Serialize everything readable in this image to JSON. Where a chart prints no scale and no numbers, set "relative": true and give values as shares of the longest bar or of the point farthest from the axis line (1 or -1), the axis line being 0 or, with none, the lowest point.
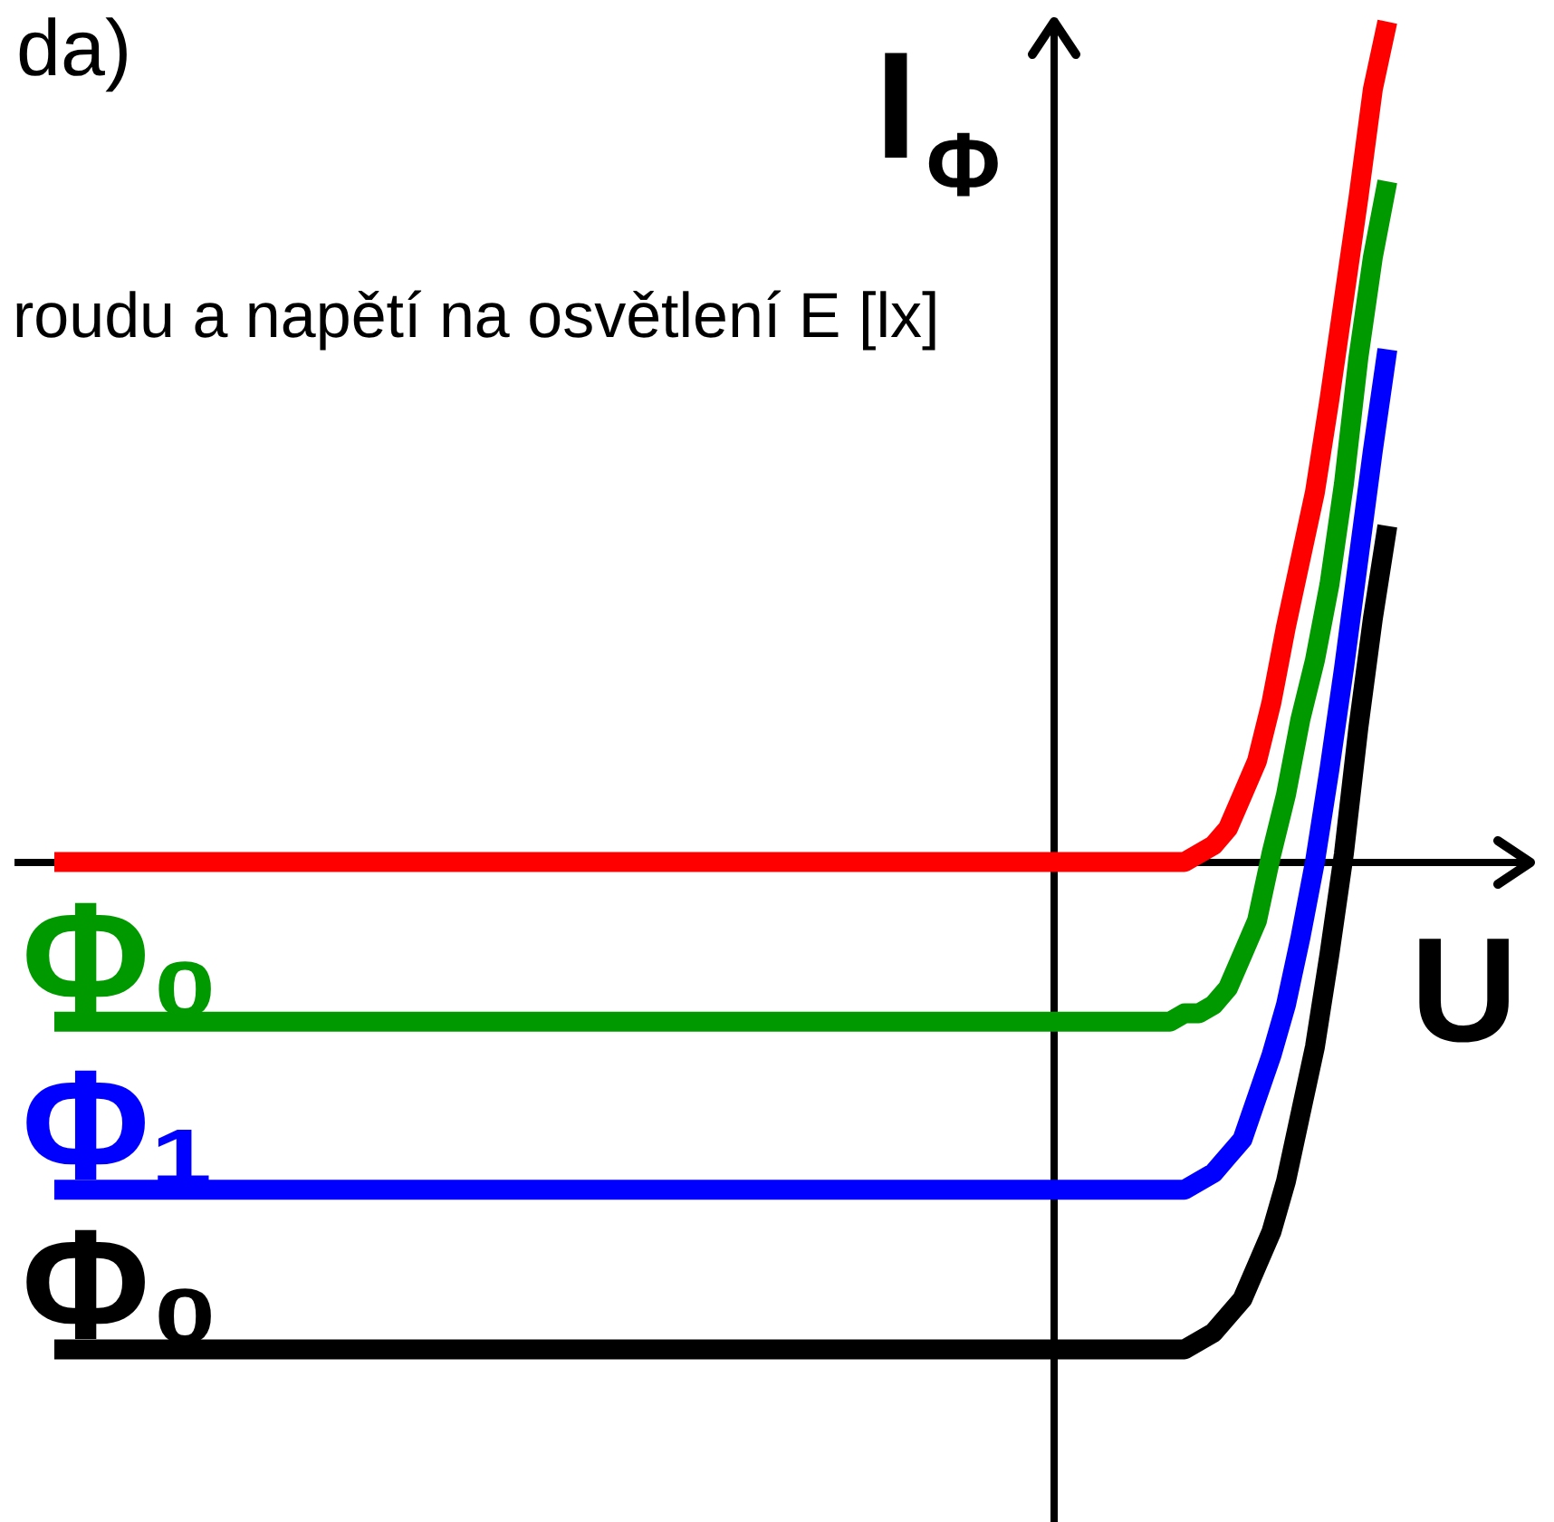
{
  "chart_data": {
    "type": "line",
    "title": "da)",
    "subtitle": "roudu a napětí na osvětlení E [lx]",
    "xlabel": "U",
    "ylabel": "I$_{Φ}$",
    "relative": true,
    "line_style": "solid",
    "categories": [
      null,
      null,
      null,
      null,
      null,
      null,
      null,
      null,
      null,
      null,
      null,
      null,
      null,
      null,
      null,
      null,
      null,
      null,
      null,
      null,
      null,
      null,
      null,
      null,
      null,
      null,
      null,
      null,
      null,
      null,
      null,
      null,
      null,
      null,
      null,
      null,
      null,
      null,
      null,
      null,
      null,
      null,
      null,
      null,
      null,
      null,
      null,
      null,
      null,
      null,
      null,
      null,
      null,
      null,
      null,
      null,
      null,
      null,
      null,
      null,
      null,
      null,
      null,
      null,
      null,
      null,
      null,
      null,
      null,
      null,
      null,
      null,
      null,
      null,
      null,
      null,
      null,
      null,
      null,
      null,
      null,
      null,
      null,
      null,
      null,
      null,
      null,
      null,
      null,
      null,
      null,
      null,
      null,
      null,
      null,
      null,
      null,
      null,
      null,
      null,
      null,
      null,
      null
    ],
    "series": [
      {
        "color": "#ff0000",
        "values": [
          0,
          0,
          0,
          0,
          0,
          0,
          0,
          0,
          0,
          0,
          0,
          0,
          0,
          0,
          0,
          0,
          0,
          0,
          0,
          0,
          0,
          0,
          0,
          0,
          0,
          0,
          0,
          0,
          0,
          0,
          0,
          0,
          0,
          0,
          0,
          0,
          0,
          0,
          0,
          0,
          0,
          0,
          0,
          0,
          0,
          0,
          0,
          0,
          0,
          0,
          0,
          0,
          0,
          0,
          0,
          0,
          0,
          0,
          0,
          0,
          0,
          0,
          0,
          0,
          0,
          0,
          0,
          0,
          0,
          0,
          0,
          0,
          0,
          0,
          0,
          0,
          0,
          0,
          0,
          0.01,
          0.02,
          0.04,
          0.08,
          0.12,
          0.19,
          0.28,
          0.36,
          0.44,
          0.55,
          0.67,
          0.79,
          0.92,
          1.0,
          null,
          null,
          null,
          null,
          null,
          null,
          null,
          null,
          null,
          null
        ]
      },
      {
        "name": "Φ₀",
        "color": "#009900",
        "values": [
          -0.19,
          -0.19,
          -0.19,
          -0.19,
          -0.19,
          -0.19,
          -0.19,
          -0.19,
          -0.19,
          -0.19,
          -0.19,
          -0.19,
          -0.19,
          -0.19,
          -0.19,
          -0.19,
          -0.19,
          -0.19,
          -0.19,
          -0.19,
          -0.19,
          -0.19,
          -0.19,
          -0.19,
          -0.19,
          -0.19,
          -0.19,
          -0.19,
          -0.19,
          -0.19,
          -0.19,
          -0.19,
          -0.19,
          -0.19,
          -0.19,
          -0.19,
          -0.19,
          -0.19,
          -0.19,
          -0.19,
          -0.19,
          -0.19,
          -0.19,
          -0.19,
          -0.19,
          -0.19,
          -0.19,
          -0.19,
          -0.19,
          -0.19,
          -0.19,
          -0.19,
          -0.19,
          -0.19,
          -0.19,
          -0.19,
          -0.19,
          -0.19,
          -0.19,
          -0.19,
          -0.19,
          -0.19,
          -0.19,
          -0.19,
          -0.19,
          -0.19,
          -0.19,
          -0.19,
          -0.19,
          -0.19,
          -0.19,
          -0.19,
          -0.19,
          -0.19,
          -0.19,
          -0.19,
          -0.19,
          -0.19,
          -0.18,
          -0.18,
          -0.17,
          -0.15,
          -0.11,
          -0.07,
          0.01,
          0.08,
          0.17,
          0.24,
          0.33,
          0.45,
          0.6,
          0.72,
          0.81,
          null,
          null,
          null,
          null,
          null,
          null,
          null,
          null,
          null,
          null
        ]
      },
      {
        "name": "Φ₁",
        "color": "#0000ff",
        "values": [
          -0.39,
          -0.39,
          -0.39,
          -0.39,
          -0.39,
          -0.39,
          -0.39,
          -0.39,
          -0.39,
          -0.39,
          -0.39,
          -0.39,
          -0.39,
          -0.39,
          -0.39,
          -0.39,
          -0.39,
          -0.39,
          -0.39,
          -0.39,
          -0.39,
          -0.39,
          -0.39,
          -0.39,
          -0.39,
          -0.39,
          -0.39,
          -0.39,
          -0.39,
          -0.39,
          -0.39,
          -0.39,
          -0.39,
          -0.39,
          -0.39,
          -0.39,
          -0.39,
          -0.39,
          -0.39,
          -0.39,
          -0.39,
          -0.39,
          -0.39,
          -0.39,
          -0.39,
          -0.39,
          -0.39,
          -0.39,
          -0.39,
          -0.39,
          -0.39,
          -0.39,
          -0.39,
          -0.39,
          -0.39,
          -0.39,
          -0.39,
          -0.39,
          -0.39,
          -0.39,
          -0.39,
          -0.39,
          -0.39,
          -0.39,
          -0.39,
          -0.39,
          -0.39,
          -0.39,
          -0.39,
          -0.39,
          -0.39,
          -0.39,
          -0.39,
          -0.39,
          -0.39,
          -0.39,
          -0.39,
          -0.39,
          -0.39,
          -0.38,
          -0.37,
          -0.35,
          -0.33,
          -0.28,
          -0.23,
          -0.17,
          -0.09,
          0.0,
          0.11,
          0.23,
          0.36,
          0.49,
          0.61,
          null,
          null,
          null,
          null,
          null,
          null,
          null,
          null,
          null,
          null
        ]
      },
      {
        "name": "Φ₀",
        "color": "#000000",
        "values": [
          -0.58,
          -0.58,
          -0.58,
          -0.58,
          -0.58,
          -0.58,
          -0.58,
          -0.58,
          -0.58,
          -0.58,
          -0.58,
          -0.58,
          -0.58,
          -0.58,
          -0.58,
          -0.58,
          -0.58,
          -0.58,
          -0.58,
          -0.58,
          -0.58,
          -0.58,
          -0.58,
          -0.58,
          -0.58,
          -0.58,
          -0.58,
          -0.58,
          -0.58,
          -0.58,
          -0.58,
          -0.58,
          -0.58,
          -0.58,
          -0.58,
          -0.58,
          -0.58,
          -0.58,
          -0.58,
          -0.58,
          -0.58,
          -0.58,
          -0.58,
          -0.58,
          -0.58,
          -0.58,
          -0.58,
          -0.58,
          -0.58,
          -0.58,
          -0.58,
          -0.58,
          -0.58,
          -0.58,
          -0.58,
          -0.58,
          -0.58,
          -0.58,
          -0.58,
          -0.58,
          -0.58,
          -0.58,
          -0.58,
          -0.58,
          -0.58,
          -0.58,
          -0.58,
          -0.58,
          -0.58,
          -0.58,
          -0.58,
          -0.58,
          -0.58,
          -0.58,
          -0.58,
          -0.58,
          -0.58,
          -0.58,
          -0.58,
          -0.57,
          -0.56,
          -0.54,
          -0.52,
          -0.48,
          -0.44,
          -0.38,
          -0.3,
          -0.22,
          -0.11,
          0.01,
          0.16,
          0.29,
          0.4,
          null,
          null,
          null,
          null,
          null,
          null,
          null,
          null,
          null,
          null
        ]
      }
    ]
  }
}
